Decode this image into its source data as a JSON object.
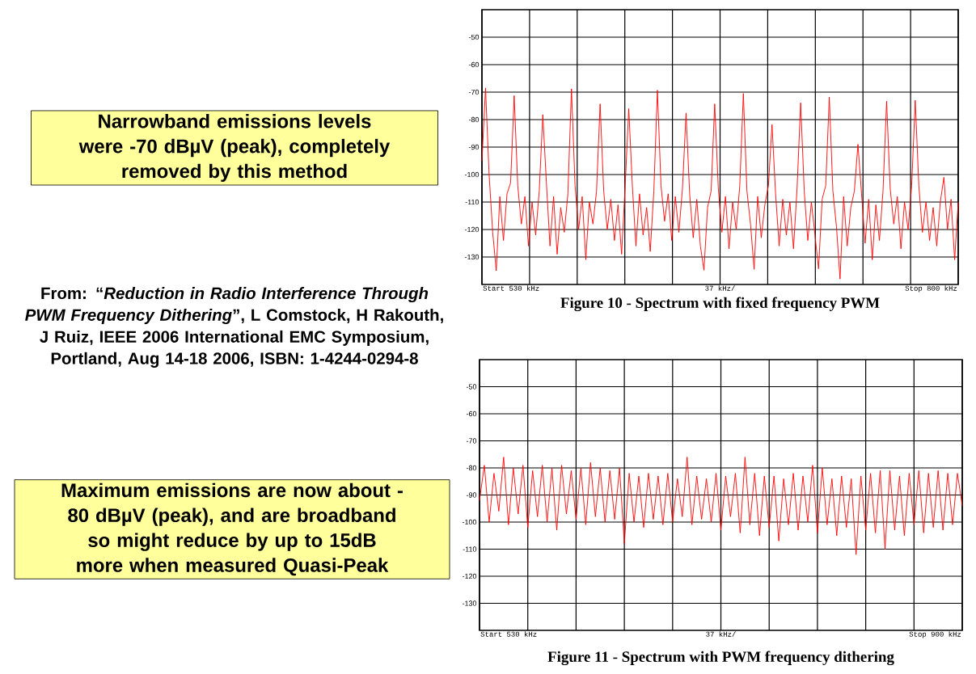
{
  "chart_data": [
    {
      "type": "line",
      "title": "Figure 10 - Spectrum with fixed frequency PWM",
      "annotations": [
        "Start 530 kHz",
        "37 kHz/",
        "Stop 800 kHz",
        "Narrowband emissions levels were -70 dBµV (peak), completely removed by this method",
        "From: “*Reduction in Radio Interference Through PWM Frequency Dithering*”, L Comstock, H Rakouth, J Ruiz, IEEE 2006 International EMC Symposium, Portland, Aug 14-18 2006, ISBN: 1-4244-0294-8"
      ],
      "categories": [
        null,
        null,
        null,
        null,
        null,
        null,
        null,
        null,
        null,
        null,
        null,
        null,
        null,
        null,
        null,
        null,
        null,
        null,
        null,
        null,
        null,
        null,
        null,
        null,
        null,
        null,
        null,
        null,
        null,
        null,
        null,
        null,
        null,
        null,
        null,
        null,
        null,
        null,
        null,
        null,
        null,
        null,
        null,
        null,
        null,
        null,
        null,
        null,
        null,
        null,
        null,
        null,
        null,
        null,
        null,
        null,
        null,
        null,
        null,
        null,
        null,
        null,
        null,
        null,
        null,
        null,
        null,
        null,
        null,
        null,
        null,
        null,
        null,
        null,
        null,
        null,
        null,
        null,
        null,
        null,
        null,
        null,
        null,
        null,
        null,
        null,
        null,
        null,
        null,
        null,
        null,
        null,
        null,
        null,
        null,
        null,
        null,
        null,
        null,
        null,
        null,
        null,
        null,
        null,
        null,
        null,
        null,
        null,
        null,
        null,
        null,
        null,
        null,
        null,
        null,
        null,
        null,
        null,
        null,
        null,
        null,
        null,
        null,
        null,
        null,
        null,
        null,
        null,
        null,
        null,
        null,
        null,
        null,
        null
      ],
      "series": [
        {
          "color": "#ff0000",
          "values": [
            -95,
            -68.5,
            -100,
            -121,
            -135,
            -108,
            -124,
            -107,
            -103,
            -71.3,
            -104,
            -118,
            -108,
            -126,
            -110,
            -122,
            -106,
            -78.2,
            -103,
            -126,
            -108,
            -129,
            -112,
            -121,
            -107,
            -68.8,
            -104,
            -120,
            -108,
            -131,
            -110,
            -118,
            -106,
            -74.3,
            -106,
            -120,
            -109,
            -124,
            -111,
            -129,
            -104,
            -76,
            -104,
            -126,
            -107,
            -122,
            -112,
            -128,
            -106,
            -69.3,
            -104,
            -117,
            -107,
            -124,
            -108,
            -121,
            -105,
            -77.6,
            -107,
            -123,
            -109,
            -126,
            -134.8,
            -112,
            -106,
            -74.3,
            -105,
            -121,
            -108,
            -127,
            -110,
            -120,
            -104,
            -70.5,
            -106,
            -118,
            -134.5,
            -108,
            -123,
            -111,
            -104,
            -81.8,
            -107,
            -126,
            -109,
            -122,
            -110,
            -127,
            -105,
            -73.9,
            -106,
            -124,
            -110,
            -122,
            -134.3,
            -109,
            -104,
            -71.8,
            -106,
            -119,
            -138,
            -108,
            -126,
            -112,
            -106,
            -89,
            -107,
            -125,
            -109,
            -131,
            -111,
            -124,
            -106,
            -73.3,
            -105,
            -118,
            -108,
            -127,
            -110,
            -120,
            -104,
            -73,
            -104,
            -121,
            -110,
            -124,
            -112,
            -126,
            -110,
            -101,
            -120,
            -109,
            -131,
            -110
          ]
        }
      ],
      "ylim": [
        -140,
        -40
      ],
      "yticks": [
        -50,
        -60,
        -70,
        -80,
        -90,
        -100,
        -110,
        -120,
        -130
      ],
      "tick_labels": "y",
      "grid": true
    },
    {
      "type": "line",
      "title": "Figure 11 - Spectrum with PWM frequency dithering",
      "annotations": [
        "Start 530 kHz",
        "37 kHz/",
        "Stop 900 kHz",
        "Maximum emissions are now about -80 dBµV (peak), and are broadband so might reduce by up to 15dB more when measured Quasi-Peak"
      ],
      "categories": [
        null,
        null,
        null,
        null,
        null,
        null,
        null,
        null,
        null,
        null,
        null,
        null,
        null,
        null,
        null,
        null,
        null,
        null,
        null,
        null,
        null,
        null,
        null,
        null,
        null,
        null,
        null,
        null,
        null,
        null,
        null,
        null,
        null,
        null,
        null,
        null,
        null,
        null,
        null,
        null,
        null,
        null,
        null,
        null,
        null,
        null,
        null,
        null,
        null,
        null,
        null,
        null,
        null,
        null,
        null,
        null,
        null,
        null,
        null,
        null,
        null,
        null,
        null,
        null,
        null,
        null,
        null,
        null,
        null,
        null,
        null,
        null,
        null,
        null,
        null,
        null,
        null,
        null,
        null,
        null,
        null,
        null,
        null,
        null,
        null,
        null,
        null,
        null,
        null,
        null,
        null,
        null,
        null,
        null,
        null,
        null,
        null,
        null,
        null,
        null,
        null
      ],
      "series": [
        {
          "color": "#ff0000",
          "values": [
            -92,
            -79,
            -100,
            -82,
            -96,
            -76,
            -101,
            -80,
            -97,
            -79,
            -102,
            -81,
            -98,
            -79,
            -100,
            -80,
            -103,
            -79,
            -97,
            -81,
            -99,
            -80,
            -101,
            -78,
            -98,
            -80,
            -100,
            -81,
            -99,
            -80,
            -108,
            -82,
            -100,
            -83,
            -102,
            -82,
            -99,
            -83,
            -101,
            -82,
            -100,
            -84,
            -98,
            -76,
            -101,
            -83,
            -99,
            -84,
            -100,
            -82,
            -103,
            -83,
            -98,
            -82,
            -104,
            -76,
            -101,
            -82,
            -105,
            -83,
            -102,
            -83,
            -107,
            -84,
            -101,
            -82,
            -103,
            -83,
            -100,
            -79,
            -104,
            -80,
            -101,
            -84,
            -105,
            -83,
            -102,
            -84,
            -112,
            -83,
            -103,
            -82,
            -104,
            -81,
            -110,
            -81,
            -103,
            -83,
            -105,
            -82,
            -101,
            -81,
            -104,
            -82,
            -102,
            -81,
            -103,
            -82,
            -101,
            -82,
            -94
          ]
        }
      ],
      "ylim": [
        -140,
        -40
      ],
      "yticks": [
        -50,
        -60,
        -70,
        -80,
        -90,
        -100,
        -110,
        -120,
        -130
      ],
      "tick_labels": "y",
      "grid": true
    }
  ]
}
